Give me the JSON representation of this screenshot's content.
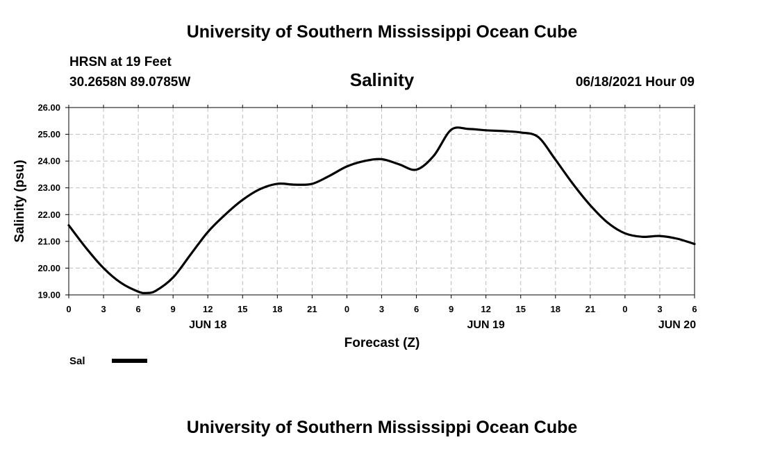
{
  "header": {
    "top_title": "University of Southern Mississippi Ocean Cube",
    "station": "HRSN at 19 Feet",
    "coords": "30.2658N  89.0785W",
    "timestamp": "06/18/2021 Hour 09",
    "bottom_title": "University of Southern Mississippi Ocean Cube"
  },
  "chart_data": {
    "type": "line",
    "title": "Salinity",
    "xlabel": "Forecast (Z)",
    "ylabel": "Salinity (psu)",
    "x_unit": "hours since Jun 18 00Z",
    "xlim": [
      0,
      54
    ],
    "ylim": [
      19.0,
      26.0
    ],
    "grid": true,
    "y_ticks": [
      19.0,
      20.0,
      21.0,
      22.0,
      23.0,
      24.0,
      25.0,
      26.0
    ],
    "y_tick_labels": [
      "19.00",
      "20.00",
      "21.00",
      "22.00",
      "23.00",
      "24.00",
      "25.00",
      "26.00"
    ],
    "x_tick_hours": [
      0,
      3,
      6,
      9,
      12,
      15,
      18,
      21,
      24,
      27,
      30,
      33,
      36,
      39,
      42,
      45,
      48,
      51,
      54
    ],
    "x_tick_labels": [
      "0",
      "3",
      "6",
      "9",
      "12",
      "15",
      "18",
      "21",
      "0",
      "3",
      "6",
      "9",
      "12",
      "15",
      "18",
      "21",
      "0",
      "3",
      "6"
    ],
    "date_labels": [
      {
        "hour": 12,
        "label": "JUN 18"
      },
      {
        "hour": 36,
        "label": "JUN 19"
      },
      {
        "hour": 52.5,
        "label": "JUN 20"
      }
    ],
    "legend": "bottom-left",
    "series": [
      {
        "name": "Sal",
        "color": "#000000",
        "x": [
          0,
          1.5,
          3,
          4.5,
          6,
          6.7,
          7.5,
          9,
          10.5,
          12,
          13.5,
          15,
          16.5,
          18,
          19.5,
          21,
          22.5,
          24,
          25.5,
          27,
          28.5,
          30,
          31.5,
          33,
          34.5,
          36,
          37.5,
          39,
          40.5,
          42,
          43.5,
          45,
          46.5,
          48,
          49.5,
          51,
          52.5,
          54
        ],
        "values": [
          21.6,
          20.75,
          20.0,
          19.45,
          19.12,
          19.07,
          19.15,
          19.65,
          20.5,
          21.35,
          22.0,
          22.55,
          22.95,
          23.15,
          23.12,
          23.15,
          23.45,
          23.8,
          24.0,
          24.07,
          23.88,
          23.68,
          24.2,
          25.17,
          25.2,
          25.15,
          25.12,
          25.07,
          24.9,
          24.05,
          23.15,
          22.35,
          21.7,
          21.3,
          21.17,
          21.2,
          21.1,
          20.9
        ]
      }
    ]
  }
}
